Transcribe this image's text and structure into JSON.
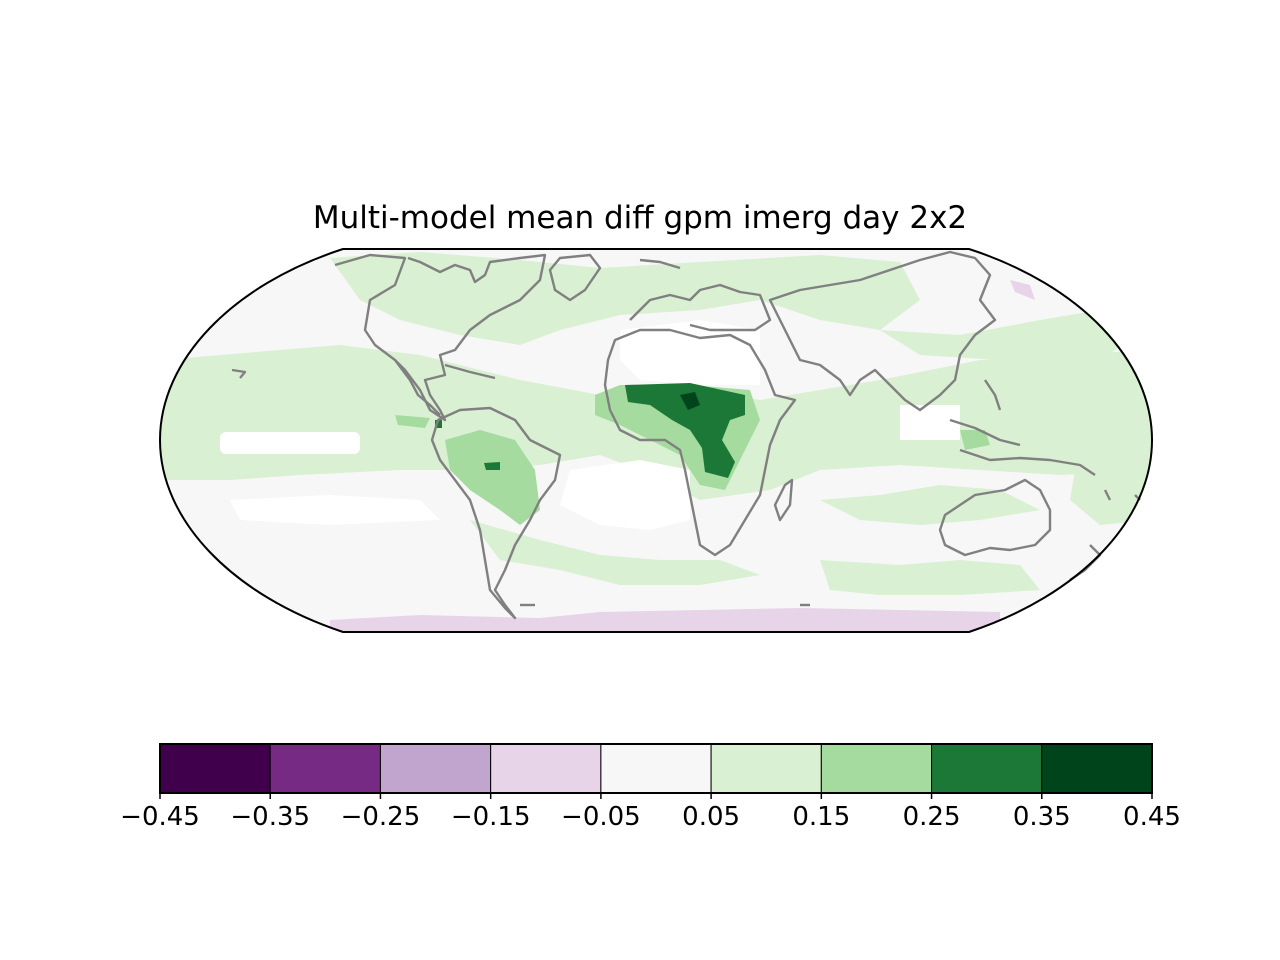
{
  "title": "Multi-model mean diff gpm imerg day 2x2",
  "map": {
    "projection": "robinson-like global",
    "coastline_color": "#808080",
    "ocean_background_color": "#f7f7f7",
    "regions": [
      {
        "name": "central-africa-core",
        "level": 0.3,
        "color": "#1b7837"
      },
      {
        "name": "central-africa-peak",
        "level": 0.4,
        "color": "#00441b"
      },
      {
        "name": "amazon-positive",
        "level": 0.2,
        "color": "#a6dba0"
      },
      {
        "name": "amazon-peak",
        "level": 0.3,
        "color": "#1b7837"
      },
      {
        "name": "antarctic-negative-band",
        "level": -0.1,
        "color": "#e7d4e8"
      }
    ]
  },
  "colorbar": {
    "colors": [
      "#40004b",
      "#762a83",
      "#c2a5cf",
      "#e7d4e8",
      "#f7f7f7",
      "#d9f0d3",
      "#a6dba0",
      "#1b7837",
      "#00441b"
    ],
    "tick_labels": [
      "−0.45",
      "−0.35",
      "−0.25",
      "−0.15",
      "−0.05",
      "0.05",
      "0.15",
      "0.25",
      "0.35",
      "0.45"
    ],
    "boundaries": [
      -0.45,
      -0.35,
      -0.25,
      -0.15,
      -0.05,
      0.05,
      0.15,
      0.25,
      0.35,
      0.45
    ]
  }
}
